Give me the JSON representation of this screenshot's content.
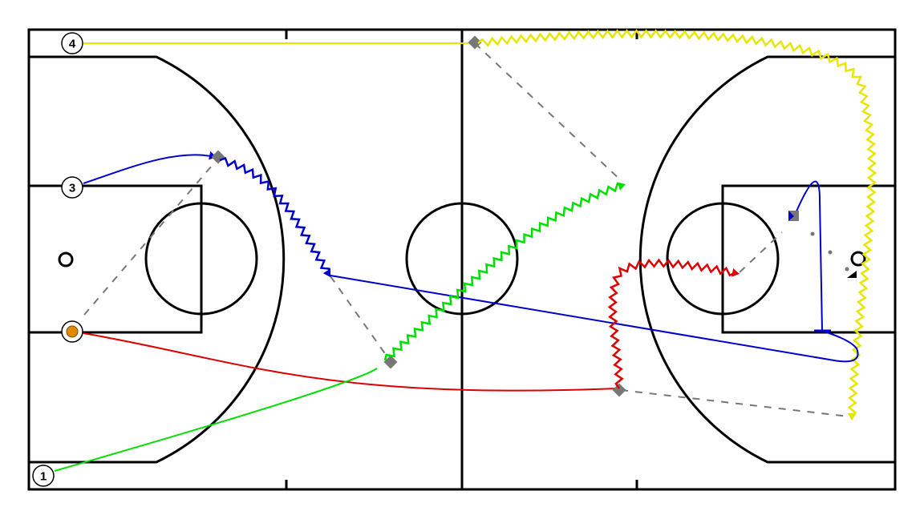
{
  "diagram": {
    "type": "basketball-play",
    "colors": {
      "court_lines": "#000000",
      "dribble_yellow": "#e6e600",
      "blue": "#0000cc",
      "red": "#dd0000",
      "green": "#00dd00",
      "pass": "#777777",
      "ball": "#e08a00"
    },
    "players": [
      {
        "label": "4",
        "line_color": "#e6e600"
      },
      {
        "label": "3",
        "line_color": "#0000cc"
      },
      {
        "label": "",
        "has_ball": true,
        "icon": "basketball-icon",
        "line_color": "#dd0000"
      },
      {
        "label": "1",
        "line_color": "#00dd00"
      }
    ]
  }
}
